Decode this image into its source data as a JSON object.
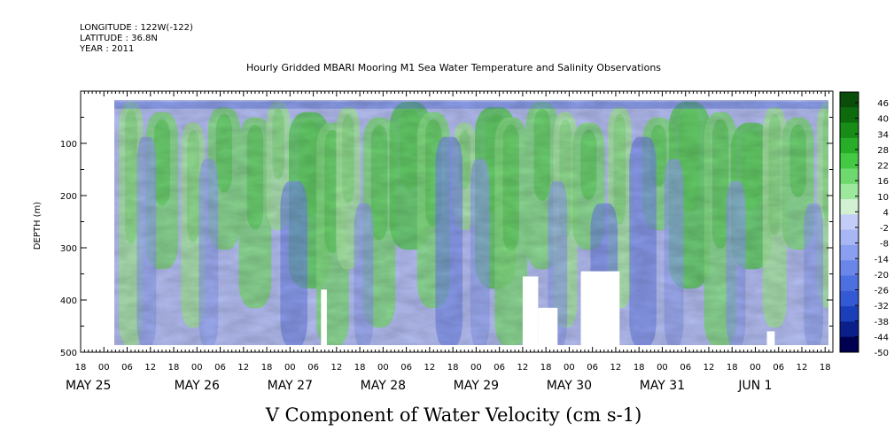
{
  "header": {
    "longitude": "LONGITUDE : 122W(-122)",
    "latitude": "LATITUDE : 36.8N",
    "year": "YEAR : 2011"
  },
  "chart_data": {
    "type": "heatmap",
    "title": "Hourly Gridded MBARI Mooring M1 Sea Water Temperature and Salinity Observations",
    "xlabel": "V Component of Water Velocity (cm s-1)",
    "ylabel": "DEPTH (m)",
    "y_axis": {
      "range": [
        0,
        500
      ],
      "inverted": true,
      "labeled_ticks": [
        100,
        200,
        300,
        400,
        500
      ],
      "data_range": [
        20,
        490
      ]
    },
    "x_axis": {
      "start": "2011-05-24T18:00",
      "end": "2011-06-01T20:00",
      "data_start": "2011-05-25T01:00",
      "data_end": "2011-06-01T19:00",
      "hour_labels": [
        "18",
        "00",
        "06",
        "12",
        "18",
        "00",
        "06",
        "12",
        "18",
        "00",
        "06",
        "12",
        "18",
        "00",
        "06",
        "12",
        "18",
        "00",
        "06",
        "12",
        "18",
        "00",
        "06",
        "12",
        "18",
        "00",
        "06",
        "12",
        "18",
        "00",
        "06",
        "12",
        "18"
      ],
      "day_labels": [
        {
          "label": "MAY 25",
          "at": "2011-05-24T18:00"
        },
        {
          "label": "MAY 26",
          "at": "2011-05-26T00:00"
        },
        {
          "label": "MAY 27",
          "at": "2011-05-27T00:00"
        },
        {
          "label": "MAY 28",
          "at": "2011-05-28T00:00"
        },
        {
          "label": "MAY 29",
          "at": "2011-05-29T00:00"
        },
        {
          "label": "MAY 30",
          "at": "2011-05-30T00:00"
        },
        {
          "label": "MAY 31",
          "at": "2011-05-31T00:00"
        },
        {
          "label": "JUN  1",
          "at": "2011-06-01T00:00"
        }
      ]
    },
    "colorbar": {
      "range": [
        -50,
        50
      ],
      "labels": [
        "46",
        "40",
        "34",
        "28",
        "22",
        "16",
        "10",
        "4",
        "-2",
        "-8",
        "-14",
        "-20",
        "-26",
        "-32",
        "-38",
        "-44",
        "-50"
      ],
      "colors": [
        "#000050",
        "#0a1f8a",
        "#1a3fb8",
        "#3359d4",
        "#4d6fe0",
        "#6a86e8",
        "#8a9ff0",
        "#a8b6f4",
        "#c3cdf7",
        "#d2f0d2",
        "#9de89d",
        "#6ed96e",
        "#45c945",
        "#28ad28",
        "#178d17",
        "#0d6b0d",
        "#0a4d0a"
      ]
    },
    "value_notes": "Velocity field alternates between positive (green, ~4 to 28 cm/s) and negative (blue, ~-2 to -26 cm/s) bands roughly twice daily; missing data (white) near 350-490 m around May 27 08h, May 29 12h-May 30 13h and Jun 1 03h.",
    "missing_blocks": [
      {
        "from": "2011-05-27T08:00",
        "to": "2011-05-27T09:30",
        "depth_from": 380,
        "depth_to": 490
      },
      {
        "from": "2011-05-29T12:00",
        "to": "2011-05-29T16:00",
        "depth_from": 355,
        "depth_to": 490
      },
      {
        "from": "2011-05-29T16:00",
        "to": "2011-05-29T21:00",
        "depth_from": 415,
        "depth_to": 490
      },
      {
        "from": "2011-05-30T03:00",
        "to": "2011-05-30T13:00",
        "depth_from": 345,
        "depth_to": 490
      },
      {
        "from": "2011-06-01T03:00",
        "to": "2011-06-01T05:00",
        "depth_from": 460,
        "depth_to": 490
      }
    ]
  }
}
